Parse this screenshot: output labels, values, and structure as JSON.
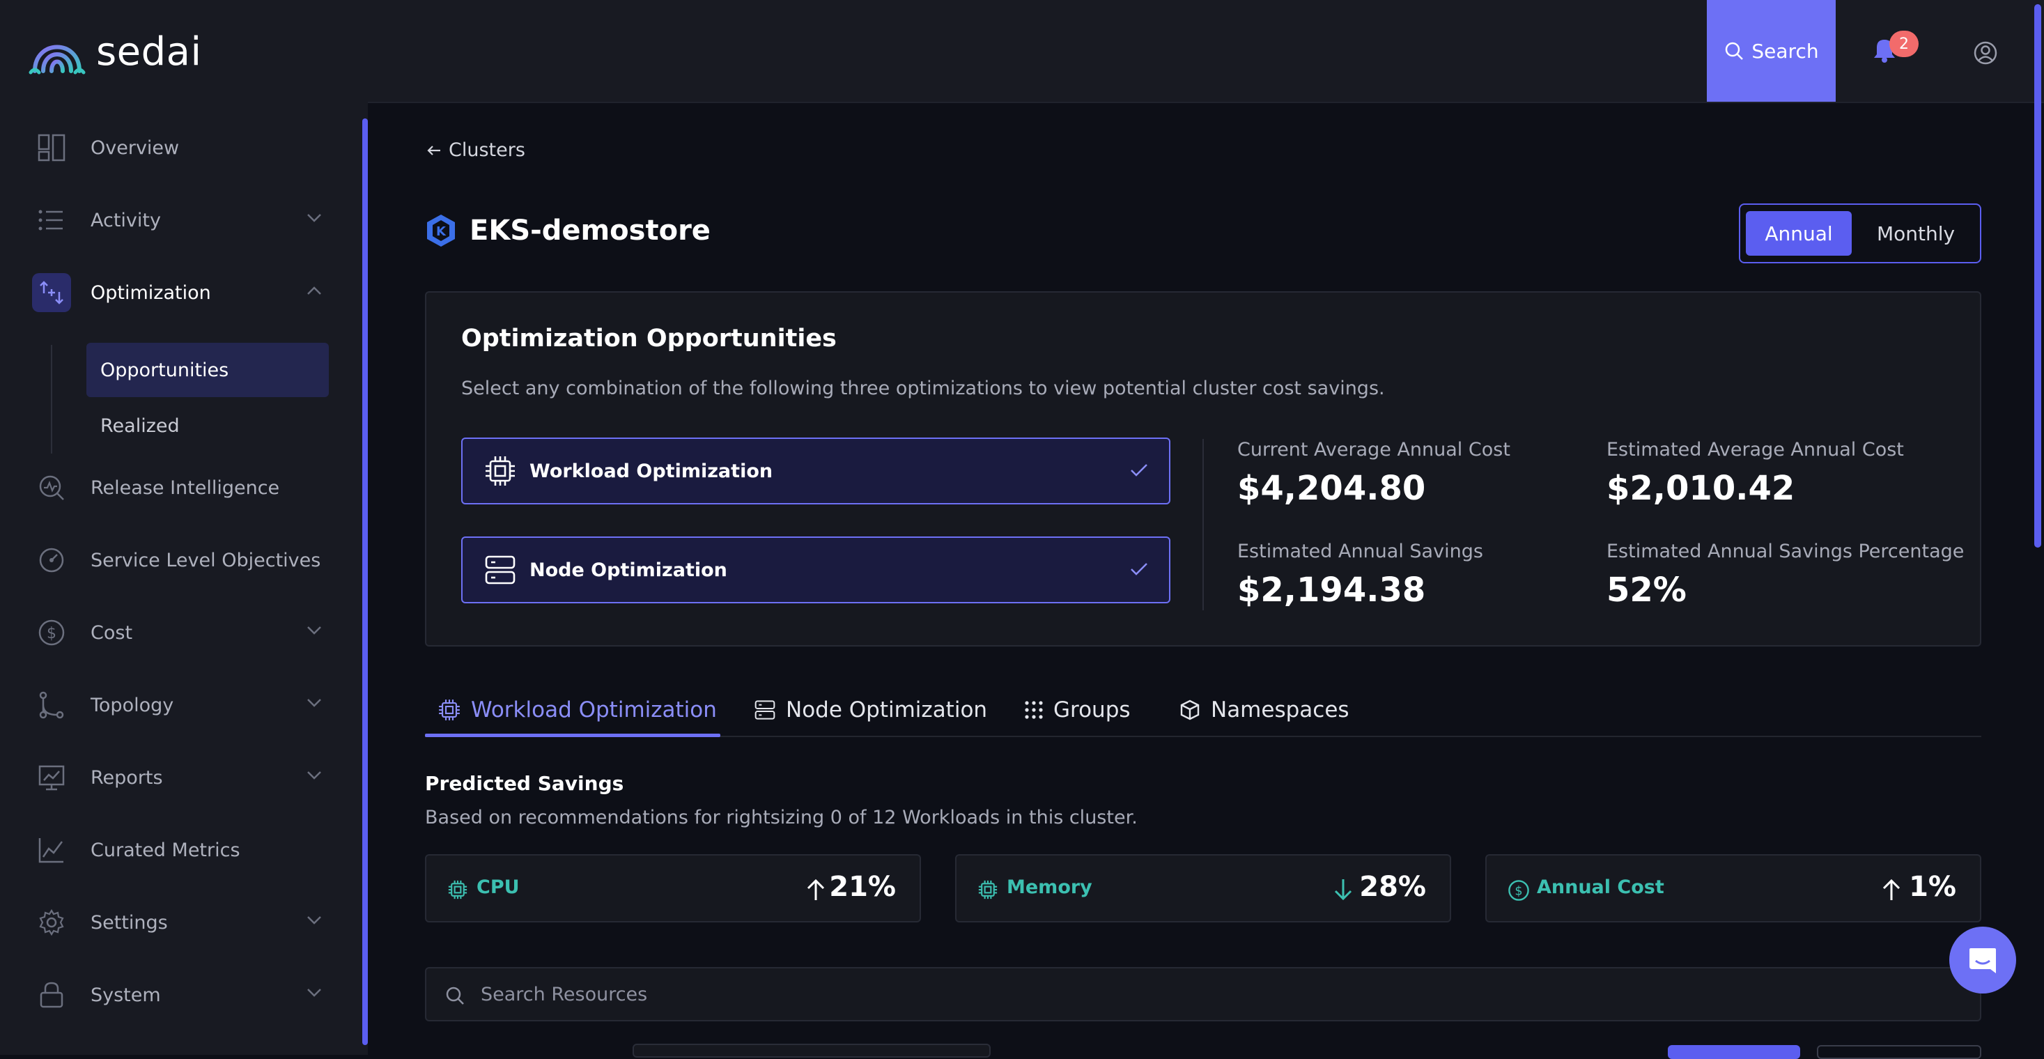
{
  "app": {
    "logo_text": "sedai",
    "accent": "#6d70f5",
    "teal": "#3cc0b1"
  },
  "sidebar": {
    "items": [
      {
        "label": "Overview",
        "icon": "overview-icon",
        "expandable": false
      },
      {
        "label": "Activity",
        "icon": "list-icon",
        "expandable": true
      },
      {
        "label": "Optimization",
        "icon": "optimization-icon",
        "expandable": true,
        "expanded": true,
        "active": true
      },
      {
        "label": "Release Intelligence",
        "icon": "release-icon",
        "expandable": false
      },
      {
        "label": "Service Level Objectives",
        "icon": "slo-icon",
        "expandable": false
      },
      {
        "label": "Cost",
        "icon": "dollar-icon",
        "expandable": true
      },
      {
        "label": "Topology",
        "icon": "topology-icon",
        "expandable": true
      },
      {
        "label": "Reports",
        "icon": "reports-icon",
        "expandable": true
      },
      {
        "label": "Curated Metrics",
        "icon": "chart-icon",
        "expandable": false
      },
      {
        "label": "Settings",
        "icon": "gear-icon",
        "expandable": true
      },
      {
        "label": "System",
        "icon": "lock-icon",
        "expandable": true
      }
    ],
    "sub_items": [
      {
        "label": "Opportunities",
        "active": true
      },
      {
        "label": "Realized",
        "active": false
      }
    ]
  },
  "topbar": {
    "search_label": "Search",
    "notification_count": "2"
  },
  "header": {
    "back_label": "Clusters",
    "cluster_name": "EKS-demostore",
    "period_options": [
      "Annual",
      "Monthly"
    ],
    "period_selected": "Annual"
  },
  "opportunities": {
    "title": "Optimization Opportunities",
    "description": "Select any combination of the following three optimizations to view potential cluster cost savings.",
    "options": [
      {
        "label": "Workload Optimization",
        "checked": true
      },
      {
        "label": "Node Optimization",
        "checked": true
      }
    ],
    "metrics": [
      {
        "label": "Current Average Annual Cost",
        "value": "$4,204.80"
      },
      {
        "label": "Estimated Average Annual Cost",
        "value": "$2,010.42"
      },
      {
        "label": "Estimated Annual Savings",
        "value": "$2,194.38"
      },
      {
        "label": "Estimated Annual Savings Percentage",
        "value": "52%"
      }
    ]
  },
  "tabs": [
    {
      "label": "Workload Optimization",
      "active": true
    },
    {
      "label": "Node Optimization",
      "active": false
    },
    {
      "label": "Groups",
      "active": false
    },
    {
      "label": "Namespaces",
      "active": false
    }
  ],
  "predicted_savings": {
    "title": "Predicted Savings",
    "description": "Based on recommendations for rightsizing 0 of 12 Workloads in this cluster.",
    "cards": [
      {
        "label": "CPU",
        "direction": "up",
        "value": "21%"
      },
      {
        "label": "Memory",
        "direction": "down",
        "value": "28%"
      },
      {
        "label": "Annual Cost",
        "direction": "up",
        "value": "1%"
      }
    ]
  },
  "resources": {
    "search_placeholder": "Search Resources"
  }
}
